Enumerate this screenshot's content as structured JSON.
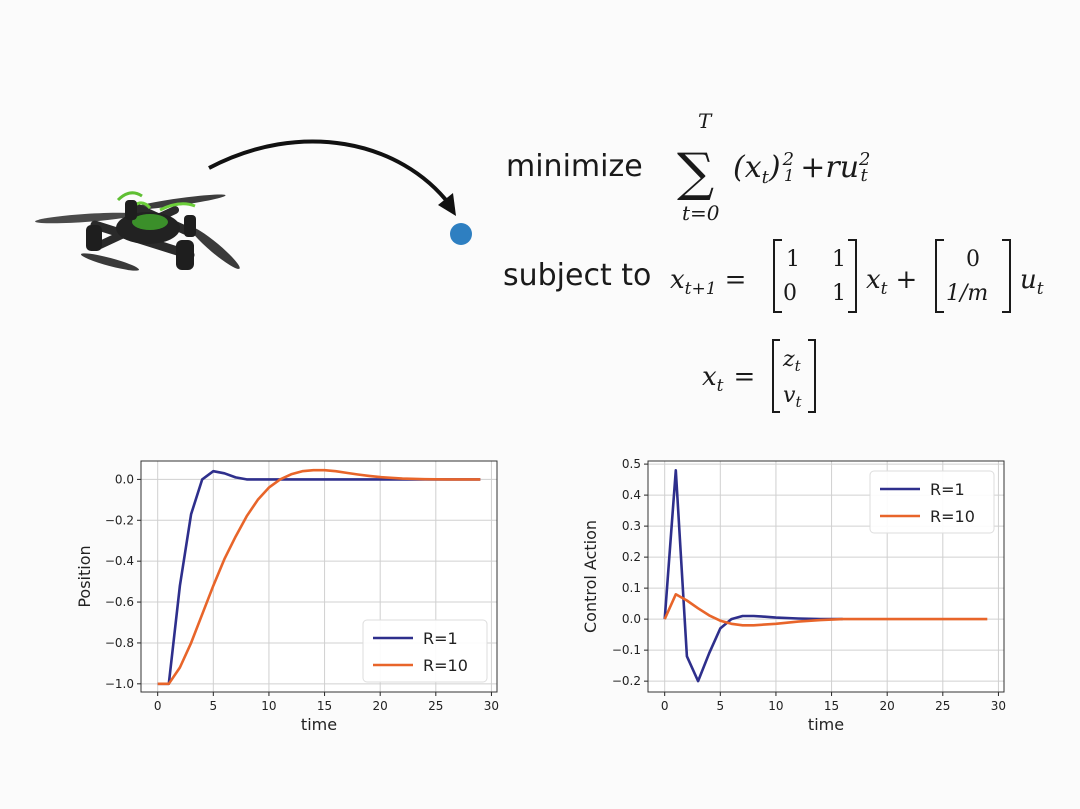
{
  "slide": {
    "objective_label": "minimize",
    "constraint_label": "subject to",
    "sum_upper": "T",
    "sum_lower": "t=0",
    "state_def_lhs": "x",
    "state_def_rows": [
      "z",
      "v"
    ],
    "matrix_A": [
      [
        "1",
        "1"
      ],
      [
        "0",
        "1"
      ]
    ],
    "matrix_B": [
      "0",
      "1/m"
    ],
    "colors": {
      "target_dot": "#2e7fc1",
      "arrow": "#111111"
    },
    "icons": {
      "drone": "quadcopter-drone-icon"
    }
  },
  "chart_data": [
    {
      "type": "line",
      "xlabel": "time",
      "ylabel": "Position",
      "xlim": [
        -1.5,
        30.5
      ],
      "ylim": [
        -1.04,
        0.09
      ],
      "xticks": [
        "0",
        "5",
        "10",
        "15",
        "20",
        "25",
        "30"
      ],
      "yticks": [
        "0.0",
        "−0.2",
        "−0.4",
        "−0.6",
        "−0.8",
        "−1.0"
      ],
      "ytick_values": [
        0.0,
        -0.2,
        -0.4,
        -0.6,
        -0.8,
        -1.0
      ],
      "grid": true,
      "legend_position": "lower-right",
      "series": [
        {
          "name": "R=1",
          "color": "#2e2f8c",
          "x": [
            0,
            1,
            2,
            3,
            4,
            5,
            6,
            7,
            8,
            9,
            10,
            12,
            15,
            20,
            25,
            29
          ],
          "y": [
            -1.0,
            -1.0,
            -0.52,
            -0.17,
            0.0,
            0.04,
            0.03,
            0.01,
            0.0,
            0.0,
            0.0,
            0.0,
            0.0,
            0.0,
            0.0,
            0.0
          ]
        },
        {
          "name": "R=10",
          "color": "#e8652a",
          "x": [
            0,
            1,
            2,
            3,
            4,
            5,
            6,
            7,
            8,
            9,
            10,
            11,
            12,
            13,
            14,
            15,
            16,
            17,
            18,
            19,
            20,
            22,
            24,
            26,
            29
          ],
          "y": [
            -1.0,
            -1.0,
            -0.92,
            -0.8,
            -0.66,
            -0.52,
            -0.39,
            -0.28,
            -0.18,
            -0.1,
            -0.04,
            0.0,
            0.025,
            0.04,
            0.045,
            0.045,
            0.04,
            0.032,
            0.024,
            0.017,
            0.011,
            0.004,
            0.001,
            0.0,
            0.0
          ]
        }
      ]
    },
    {
      "type": "line",
      "xlabel": "time",
      "ylabel": "Control Action",
      "xlim": [
        -1.5,
        30.5
      ],
      "ylim": [
        -0.235,
        0.51
      ],
      "xticks": [
        "0",
        "5",
        "10",
        "15",
        "20",
        "25",
        "30"
      ],
      "yticks": [
        "0.5",
        "0.4",
        "0.3",
        "0.2",
        "0.1",
        "0.0",
        "−0.1",
        "−0.2"
      ],
      "ytick_values": [
        0.5,
        0.4,
        0.3,
        0.2,
        0.1,
        0.0,
        -0.1,
        -0.2
      ],
      "grid": true,
      "legend_position": "upper-right",
      "series": [
        {
          "name": "R=1",
          "color": "#2e2f8c",
          "x": [
            0,
            1,
            2,
            3,
            4,
            5,
            6,
            7,
            8,
            9,
            10,
            12,
            14,
            16
          ],
          "y": [
            0.0,
            0.48,
            -0.12,
            -0.2,
            -0.11,
            -0.03,
            0.0,
            0.01,
            0.01,
            0.008,
            0.005,
            0.002,
            0.0,
            0.0
          ]
        },
        {
          "name": "R=10",
          "color": "#e8652a",
          "x": [
            0,
            1,
            2,
            3,
            4,
            5,
            6,
            7,
            8,
            10,
            12,
            14,
            16,
            20,
            25,
            29
          ],
          "y": [
            0.0,
            0.08,
            0.06,
            0.035,
            0.012,
            -0.005,
            -0.015,
            -0.02,
            -0.02,
            -0.015,
            -0.008,
            -0.003,
            0.0,
            0.0,
            0.0,
            0.0
          ]
        }
      ]
    }
  ]
}
